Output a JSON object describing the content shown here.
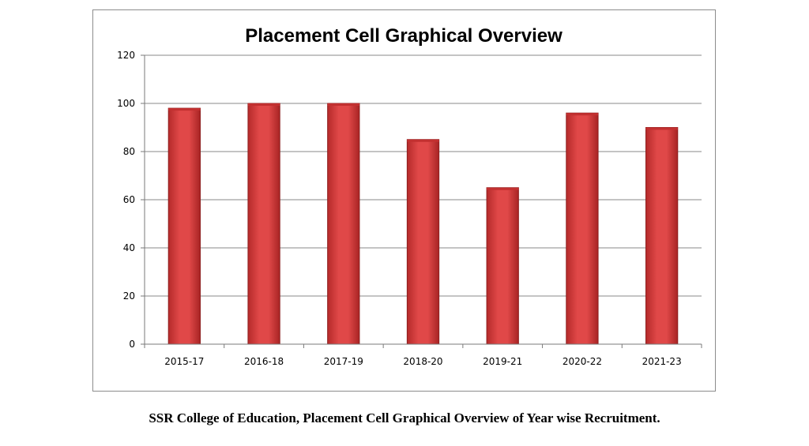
{
  "chart_data": {
    "type": "bar",
    "title": "Placement Cell Graphical Overview",
    "categories": [
      "2015-17",
      "2016-18",
      "2017-19",
      "2018-20",
      "2019-21",
      "2020-22",
      "2021-23"
    ],
    "values": [
      98,
      100,
      100,
      85,
      65,
      96,
      90
    ],
    "ylim": [
      0,
      120
    ],
    "yticks": [
      0,
      20,
      40,
      60,
      80,
      100,
      120
    ],
    "grid": true,
    "legend": "none",
    "bar_color": "#d63a3a",
    "bar_edge_color": "#8e1f1f"
  },
  "caption": "SSR College of Education, Placement Cell Graphical Overview of Year wise Recruitment."
}
